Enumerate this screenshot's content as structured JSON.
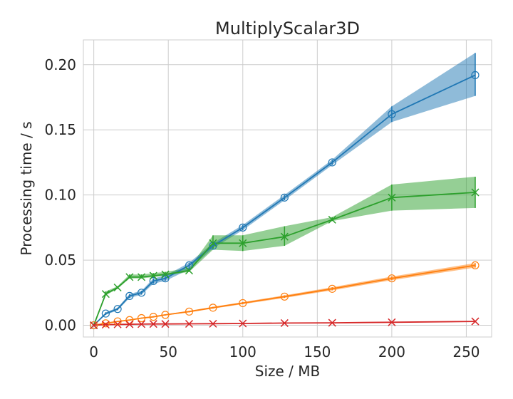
{
  "chart_data": {
    "type": "line",
    "title": "MultiplyScalar3D",
    "xlabel": "Size / MB",
    "ylabel": "Processing time / s",
    "xlim": [
      -7,
      267
    ],
    "ylim": [
      -0.009,
      0.219
    ],
    "xticks": [
      0,
      50,
      100,
      150,
      200,
      250
    ],
    "yticks": [
      0.0,
      0.05,
      0.1,
      0.15,
      0.2
    ],
    "xtick_labels": [
      "0",
      "50",
      "100",
      "150",
      "200",
      "250"
    ],
    "ytick_labels": [
      "0.00",
      "0.05",
      "0.10",
      "0.15",
      "0.20"
    ],
    "grid": true,
    "series": [
      {
        "color": "#1f77b4",
        "marker": "o",
        "x": [
          0,
          8,
          16,
          24,
          32,
          40,
          48,
          64,
          80,
          100,
          128,
          160,
          200,
          256
        ],
        "y": [
          0.0,
          0.009,
          0.0125,
          0.0225,
          0.025,
          0.034,
          0.036,
          0.046,
          0.061,
          0.075,
          0.098,
          0.125,
          0.162,
          0.192
        ],
        "lower": [
          0.0,
          0.008,
          0.0115,
          0.021,
          0.0235,
          0.032,
          0.034,
          0.043,
          0.059,
          0.073,
          0.096,
          0.123,
          0.156,
          0.176
        ],
        "upper": [
          0.0,
          0.01,
          0.0135,
          0.024,
          0.0265,
          0.036,
          0.038,
          0.048,
          0.063,
          0.077,
          0.1,
          0.127,
          0.168,
          0.209
        ]
      },
      {
        "color": "#ff7f0e",
        "marker": "o",
        "x": [
          0,
          8,
          16,
          24,
          32,
          40,
          48,
          64,
          80,
          100,
          128,
          160,
          200,
          256
        ],
        "y": [
          0.0,
          0.0015,
          0.003,
          0.004,
          0.0055,
          0.0065,
          0.008,
          0.0105,
          0.0135,
          0.017,
          0.022,
          0.028,
          0.036,
          0.046
        ],
        "lower": [
          0.0,
          0.0013,
          0.0027,
          0.0037,
          0.0051,
          0.006,
          0.0075,
          0.0099,
          0.0128,
          0.0162,
          0.021,
          0.0268,
          0.0346,
          0.0443
        ],
        "upper": [
          0.0,
          0.0017,
          0.0033,
          0.0043,
          0.0059,
          0.007,
          0.0085,
          0.0111,
          0.0142,
          0.0178,
          0.023,
          0.0292,
          0.0374,
          0.0477
        ]
      },
      {
        "color": "#2ca02c",
        "marker": "x",
        "x": [
          0,
          8,
          16,
          24,
          32,
          40,
          48,
          64,
          80,
          100,
          128,
          160,
          200,
          256
        ],
        "y": [
          0.0,
          0.024,
          0.029,
          0.037,
          0.037,
          0.038,
          0.039,
          0.042,
          0.063,
          0.063,
          0.068,
          0.081,
          0.098,
          0.102
        ],
        "lower": [
          0.0,
          0.023,
          0.028,
          0.036,
          0.036,
          0.037,
          0.038,
          0.041,
          0.058,
          0.057,
          0.061,
          0.08,
          0.088,
          0.09
        ],
        "upper": [
          0.0,
          0.026,
          0.03,
          0.039,
          0.039,
          0.04,
          0.041,
          0.044,
          0.069,
          0.069,
          0.076,
          0.083,
          0.108,
          0.114
        ]
      },
      {
        "color": "#d62728",
        "marker": "x",
        "x": [
          0,
          8,
          16,
          24,
          32,
          40,
          48,
          64,
          80,
          100,
          128,
          160,
          200,
          256
        ],
        "y": [
          0.0,
          0.0005,
          0.0007,
          0.0008,
          0.0009,
          0.001,
          0.001,
          0.0011,
          0.0012,
          0.0014,
          0.0017,
          0.0019,
          0.0023,
          0.003
        ],
        "lower": [
          0.0,
          0.0004,
          0.0006,
          0.0007,
          0.0008,
          0.0009,
          0.0009,
          0.001,
          0.0011,
          0.0013,
          0.0015,
          0.0017,
          0.0021,
          0.0027
        ],
        "upper": [
          0.0,
          0.0006,
          0.0008,
          0.0009,
          0.001,
          0.0011,
          0.0011,
          0.0012,
          0.0013,
          0.0015,
          0.0019,
          0.0021,
          0.0025,
          0.0033
        ]
      }
    ]
  }
}
